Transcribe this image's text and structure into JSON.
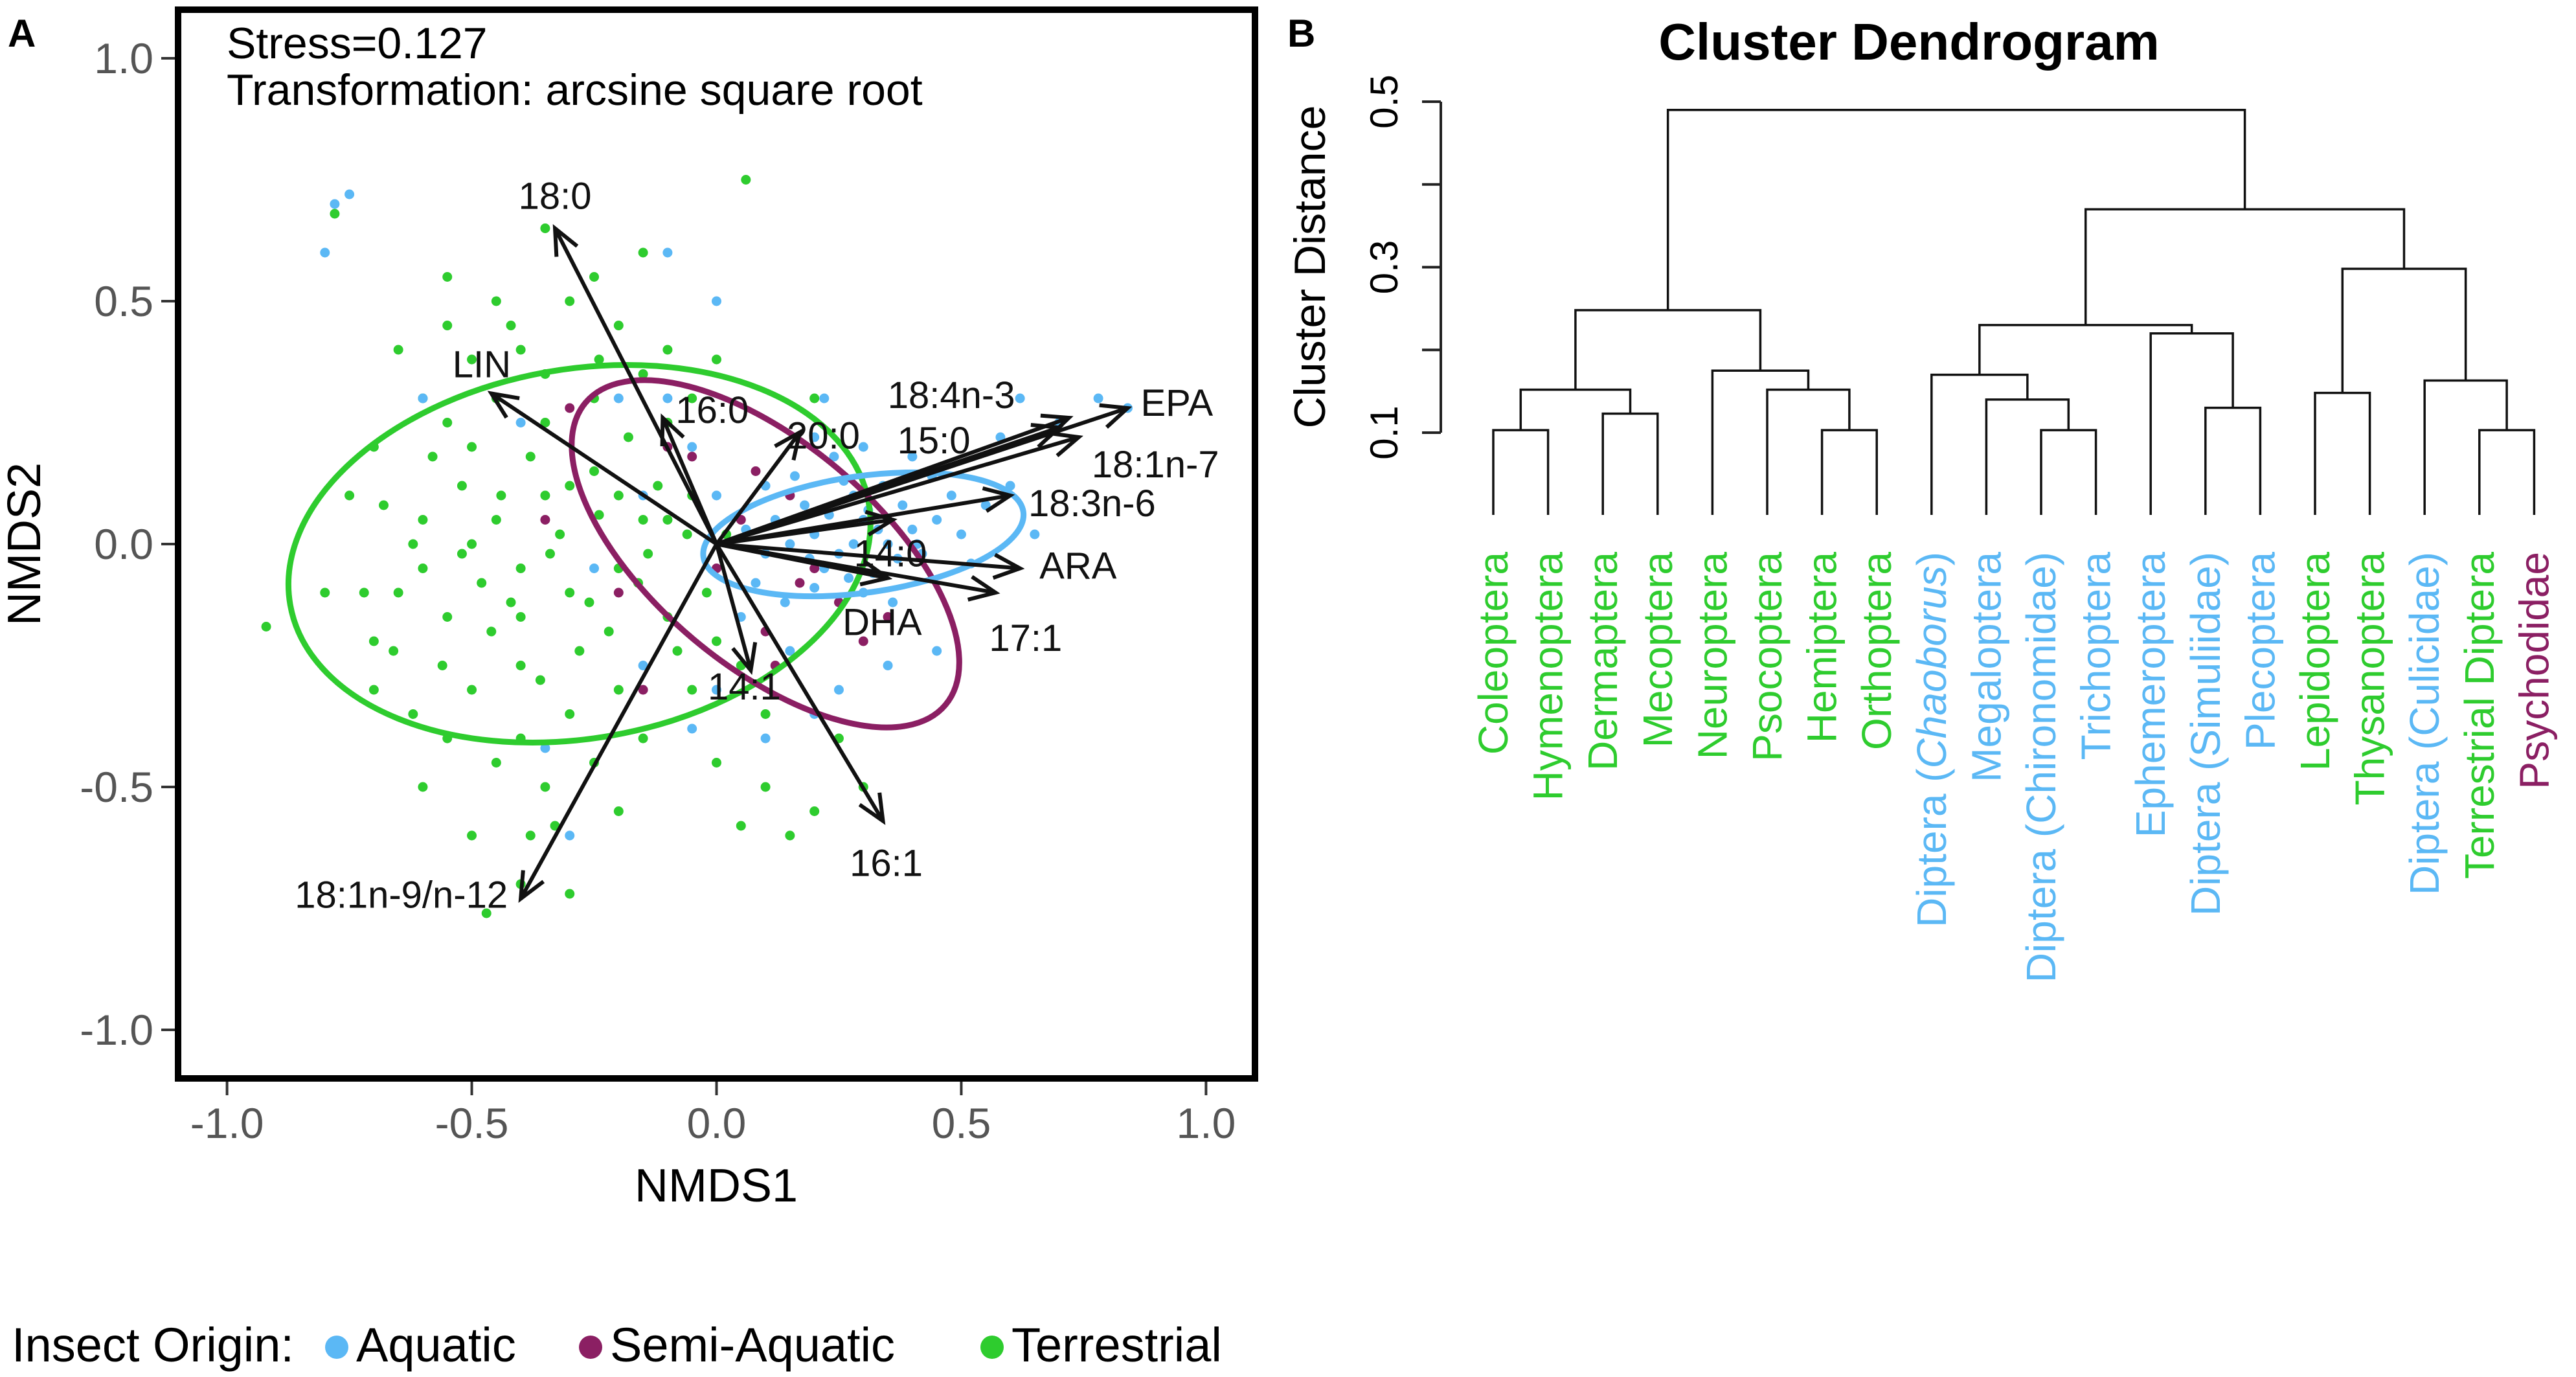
{
  "panel_a_label": "A",
  "panel_b_label": "B",
  "colors": {
    "aquatic": "#5BB8F5",
    "semi_aquatic": "#8B1F63",
    "terrestrial": "#2ECC2E",
    "axis": "#000000",
    "tick_text": "#555555"
  },
  "chart_data": [
    {
      "type": "scatter",
      "panel": "A",
      "annotations": [
        "Stress=0.127",
        "Transformation: arcsine square root"
      ],
      "xlabel": "NMDS1",
      "ylabel": "NMDS2",
      "xlim": [
        -1.1,
        1.1
      ],
      "ylim": [
        -1.1,
        1.1
      ],
      "x_ticks": [
        -1.0,
        -0.5,
        0.0,
        0.5,
        1.0
      ],
      "x_tick_labels": [
        "-1.0",
        "-0.5",
        "0.0",
        "0.5",
        "1.0"
      ],
      "y_ticks": [
        -1.0,
        -0.5,
        0.0,
        0.5,
        1.0
      ],
      "y_tick_labels": [
        "-1.0",
        "-0.5",
        "0.0",
        "0.5",
        "1.0"
      ],
      "legend": {
        "title": "Insect Origin:",
        "position": "bottom",
        "entries": [
          {
            "label": "Aquatic",
            "group": "aquatic"
          },
          {
            "label": "Semi-Aquatic",
            "group": "semi_aquatic"
          },
          {
            "label": "Terrestrial",
            "group": "terrestrial"
          }
        ]
      },
      "points": {
        "aquatic": [
          [
            0.2,
            0.02
          ],
          [
            0.25,
            -0.02
          ],
          [
            0.3,
            0.05
          ],
          [
            0.35,
            0.0
          ],
          [
            0.18,
            0.08
          ],
          [
            0.22,
            -0.05
          ],
          [
            0.28,
            0.1
          ],
          [
            0.4,
            0.03
          ],
          [
            0.15,
            0.0
          ],
          [
            0.32,
            -0.06
          ],
          [
            0.38,
            0.08
          ],
          [
            0.45,
            0.05
          ],
          [
            0.5,
            0.02
          ],
          [
            0.12,
            0.05
          ],
          [
            0.1,
            -0.02
          ],
          [
            0.26,
            0.13
          ],
          [
            0.34,
            0.12
          ],
          [
            0.42,
            -0.02
          ],
          [
            0.2,
            -0.09
          ],
          [
            0.3,
            -0.1
          ],
          [
            0.16,
            0.14
          ],
          [
            0.24,
            0.18
          ],
          [
            0.48,
            0.1
          ],
          [
            0.55,
            0.08
          ],
          [
            0.06,
            0.03
          ],
          [
            0.08,
            -0.08
          ],
          [
            0.36,
            -0.12
          ],
          [
            0.44,
            0.14
          ],
          [
            0.52,
            -0.04
          ],
          [
            0.6,
            0.12
          ],
          [
            0.58,
            0.22
          ],
          [
            0.62,
            0.3
          ],
          [
            0.7,
            0.25
          ],
          [
            0.78,
            0.3
          ],
          [
            0.84,
            0.28
          ],
          [
            0.65,
            0.02
          ],
          [
            0.3,
            0.2
          ],
          [
            0.4,
            0.18
          ],
          [
            0.2,
            0.22
          ],
          [
            0.1,
            0.12
          ],
          [
            0.14,
            -0.12
          ],
          [
            0.05,
            -0.15
          ],
          [
            0.0,
            0.1
          ],
          [
            -0.05,
            0.2
          ],
          [
            -0.1,
            0.3
          ],
          [
            -0.15,
            0.1
          ],
          [
            -0.2,
            0.3
          ],
          [
            0.0,
            -0.3
          ],
          [
            -0.05,
            -0.38
          ],
          [
            0.1,
            -0.4
          ],
          [
            0.2,
            -0.35
          ],
          [
            0.25,
            -0.3
          ],
          [
            -0.3,
            -0.6
          ],
          [
            -0.6,
            0.3
          ],
          [
            -0.75,
            0.72
          ],
          [
            -0.8,
            0.6
          ],
          [
            -0.78,
            0.7
          ],
          [
            -0.1,
            0.6
          ],
          [
            0.0,
            0.5
          ],
          [
            0.35,
            -0.25
          ],
          [
            0.45,
            -0.22
          ],
          [
            -0.35,
            -0.42
          ],
          [
            0.28,
            0.0
          ],
          [
            0.33,
            0.03
          ],
          [
            0.37,
            -0.03
          ],
          [
            0.23,
            0.06
          ],
          [
            0.27,
            -0.07
          ],
          [
            0.19,
            -0.03
          ],
          [
            0.41,
            0.0
          ],
          [
            0.31,
            0.07
          ],
          [
            -0.4,
            0.25
          ],
          [
            -0.25,
            -0.05
          ],
          [
            0.15,
            -0.22
          ],
          [
            0.22,
            0.3
          ],
          [
            -0.15,
            -0.25
          ]
        ],
        "semi_aquatic": [
          [
            -0.1,
            0.2
          ],
          [
            -0.2,
            -0.1
          ],
          [
            0.2,
            -0.05
          ],
          [
            -0.35,
            0.05
          ],
          [
            0.1,
            -0.18
          ],
          [
            -0.15,
            -0.3
          ],
          [
            0.3,
            -0.2
          ],
          [
            0.15,
            0.1
          ],
          [
            0.05,
            0.05
          ],
          [
            -0.05,
            0.18
          ],
          [
            0.0,
            -0.05
          ],
          [
            0.25,
            -0.12
          ],
          [
            0.12,
            -0.25
          ],
          [
            -0.3,
            0.28
          ],
          [
            0.17,
            -0.08
          ],
          [
            0.08,
            0.15
          ],
          [
            0.35,
            -0.15
          ]
        ],
        "terrestrial": [
          [
            -0.5,
            0.2
          ],
          [
            -0.45,
            0.05
          ],
          [
            -0.4,
            -0.05
          ],
          [
            -0.35,
            0.1
          ],
          [
            -0.3,
            -0.1
          ],
          [
            -0.25,
            0.15
          ],
          [
            -0.2,
            -0.05
          ],
          [
            -0.15,
            0.05
          ],
          [
            -0.1,
            -0.15
          ],
          [
            -0.05,
            0.1
          ],
          [
            -0.55,
            -0.15
          ],
          [
            -0.6,
            0.05
          ],
          [
            -0.5,
            -0.3
          ],
          [
            -0.4,
            -0.25
          ],
          [
            -0.3,
            -0.35
          ],
          [
            -0.2,
            -0.3
          ],
          [
            -0.45,
            0.3
          ],
          [
            -0.35,
            0.25
          ],
          [
            -0.25,
            0.3
          ],
          [
            -0.6,
            0.3
          ],
          [
            -0.65,
            -0.1
          ],
          [
            -0.7,
            0.2
          ],
          [
            -0.7,
            -0.3
          ],
          [
            -0.55,
            -0.4
          ],
          [
            -0.45,
            -0.45
          ],
          [
            -0.35,
            -0.5
          ],
          [
            -0.25,
            -0.45
          ],
          [
            -0.15,
            -0.4
          ],
          [
            -0.05,
            -0.3
          ],
          [
            0.05,
            -0.25
          ],
          [
            0.0,
            -0.45
          ],
          [
            0.1,
            -0.5
          ],
          [
            0.2,
            -0.55
          ],
          [
            0.15,
            -0.6
          ],
          [
            -0.4,
            -0.7
          ],
          [
            -0.3,
            -0.72
          ],
          [
            -0.5,
            -0.6
          ],
          [
            -0.6,
            -0.5
          ],
          [
            -0.65,
            0.4
          ],
          [
            -0.55,
            0.45
          ],
          [
            -0.45,
            0.5
          ],
          [
            -0.4,
            0.4
          ],
          [
            -0.3,
            0.5
          ],
          [
            -0.2,
            0.45
          ],
          [
            -0.1,
            0.4
          ],
          [
            0.0,
            0.38
          ],
          [
            -0.15,
            0.6
          ],
          [
            -0.35,
            0.65
          ],
          [
            -0.75,
            0.1
          ],
          [
            -0.8,
            -0.1
          ],
          [
            -0.92,
            -0.17
          ],
          [
            -0.7,
            -0.2
          ],
          [
            -0.62,
            0.0
          ],
          [
            -0.52,
            0.12
          ],
          [
            -0.42,
            -0.12
          ],
          [
            -0.32,
            0.02
          ],
          [
            -0.22,
            -0.18
          ],
          [
            -0.12,
            0.12
          ],
          [
            -0.02,
            -0.1
          ],
          [
            -0.48,
            -0.08
          ],
          [
            -0.38,
            0.18
          ],
          [
            -0.28,
            -0.22
          ],
          [
            -0.18,
            0.22
          ],
          [
            -0.08,
            -0.22
          ],
          [
            -0.58,
            0.18
          ],
          [
            -0.68,
            0.08
          ],
          [
            -0.66,
            -0.22
          ],
          [
            -0.56,
            -0.25
          ],
          [
            -0.46,
            -0.18
          ],
          [
            -0.36,
            -0.28
          ],
          [
            -0.26,
            -0.12
          ],
          [
            -0.16,
            -0.08
          ],
          [
            -0.06,
            0.02
          ],
          [
            -0.5,
            0.38
          ],
          [
            -0.42,
            0.45
          ],
          [
            -0.24,
            0.38
          ],
          [
            -0.1,
            0.25
          ],
          [
            0.06,
            0.75
          ],
          [
            -0.78,
            0.68
          ],
          [
            -0.52,
            -0.02
          ],
          [
            -0.44,
            0.1
          ],
          [
            -0.34,
            -0.02
          ],
          [
            -0.24,
            0.06
          ],
          [
            -0.14,
            -0.02
          ],
          [
            0.02,
            0.02
          ],
          [
            -0.6,
            -0.05
          ],
          [
            -0.4,
            -0.4
          ],
          [
            -0.2,
            -0.55
          ],
          [
            0.05,
            -0.58
          ],
          [
            0.25,
            -0.4
          ],
          [
            0.3,
            -0.5
          ],
          [
            -0.25,
            0.55
          ],
          [
            -0.55,
            0.55
          ],
          [
            -0.38,
            -0.6
          ],
          [
            -0.47,
            -0.76
          ],
          [
            -0.33,
            -0.58
          ],
          [
            -0.62,
            -0.35
          ],
          [
            -0.72,
            -0.1
          ],
          [
            -0.2,
            0.1
          ],
          [
            -0.3,
            0.12
          ],
          [
            -0.4,
            -0.15
          ],
          [
            -0.5,
            0.0
          ],
          [
            -0.1,
            0.05
          ],
          [
            0.0,
            -0.2
          ],
          [
            -0.05,
            0.3
          ],
          [
            0.1,
            -0.35
          ],
          [
            0.2,
            0.3
          ],
          [
            -0.15,
            0.35
          ],
          [
            -0.35,
            0.35
          ],
          [
            -0.55,
            0.25
          ]
        ]
      },
      "ellipses": [
        {
          "group": "terrestrial",
          "cx": -0.28,
          "cy": -0.02,
          "rx": 0.6,
          "ry": 0.38,
          "angle_deg": 10
        },
        {
          "group": "semi_aquatic",
          "cx": 0.1,
          "cy": -0.02,
          "rx": 0.48,
          "ry": 0.23,
          "angle_deg": -40
        },
        {
          "group": "aquatic",
          "cx": 0.3,
          "cy": 0.02,
          "rx": 0.33,
          "ry": 0.12,
          "angle_deg": 8
        }
      ],
      "vectors": [
        {
          "label": "18:0",
          "x": -0.33,
          "y": 0.65
        },
        {
          "label": "LIN",
          "x": -0.46,
          "y": 0.31
        },
        {
          "label": "16:0",
          "x": -0.11,
          "y": 0.26
        },
        {
          "label": "20:0",
          "x": 0.17,
          "y": 0.23
        },
        {
          "label": "18:4n-3",
          "x": 0.72,
          "y": 0.26
        },
        {
          "label": "EPA",
          "x": 0.84,
          "y": 0.28
        },
        {
          "label": "15:0",
          "x": 0.7,
          "y": 0.24
        },
        {
          "label": "18:1n-7",
          "x": 0.74,
          "y": 0.22
        },
        {
          "label": "18:3n-6",
          "x": 0.6,
          "y": 0.1
        },
        {
          "label": "14:0",
          "x": 0.36,
          "y": 0.05
        },
        {
          "label": "ARA",
          "x": 0.62,
          "y": -0.05
        },
        {
          "label": "17:1",
          "x": 0.57,
          "y": -0.1
        },
        {
          "label": "DHA",
          "x": 0.35,
          "y": -0.07
        },
        {
          "label": "14:1",
          "x": 0.07,
          "y": -0.26
        },
        {
          "label": "16:1",
          "x": 0.34,
          "y": -0.57
        },
        {
          "label": "18:1n-9/n-12",
          "x": -0.4,
          "y": -0.73
        }
      ]
    },
    {
      "type": "dendrogram",
      "panel": "B",
      "title": "Cluster Dendrogram",
      "ylabel": "Cluster Distance",
      "ylim": [
        0.1,
        0.5
      ],
      "y_ticks": [
        0.1,
        0.2,
        0.3,
        0.4,
        0.5
      ],
      "y_tick_labels": [
        "0.1",
        "",
        "0.3",
        "",
        "0.5"
      ],
      "leaves": [
        {
          "label": "Coleoptera",
          "group": "terrestrial"
        },
        {
          "label": "Hymenoptera",
          "group": "terrestrial"
        },
        {
          "label": "Dermaptera",
          "group": "terrestrial"
        },
        {
          "label": "Mecoptera",
          "group": "terrestrial"
        },
        {
          "label": "Neuroptera",
          "group": "terrestrial"
        },
        {
          "label": "Psocoptera",
          "group": "terrestrial"
        },
        {
          "label": "Hemiptera",
          "group": "terrestrial"
        },
        {
          "label": "Orthoptera",
          "group": "terrestrial"
        },
        {
          "label": "Diptera (",
          "label_italic": "Chaoborus",
          "label_end": ")",
          "group": "aquatic"
        },
        {
          "label": "Megaloptera",
          "group": "aquatic"
        },
        {
          "label": "Diptera (Chironomidae)",
          "group": "aquatic"
        },
        {
          "label": "Trichoptera",
          "group": "aquatic"
        },
        {
          "label": "Ephemeroptera",
          "group": "aquatic"
        },
        {
          "label": "Diptera (Simuliidae)",
          "group": "aquatic"
        },
        {
          "label": "Plecoptera",
          "group": "aquatic"
        },
        {
          "label": "Lepidoptera",
          "group": "terrestrial"
        },
        {
          "label": "Thysanoptera",
          "group": "terrestrial"
        },
        {
          "label": "Diptera (Culicidae)",
          "group": "aquatic"
        },
        {
          "label": "Terrestrial Diptera",
          "group": "terrestrial"
        },
        {
          "label": "Psychodidae",
          "group": "semi_aquatic"
        }
      ],
      "merges": [
        {
          "left": 0,
          "right": 1,
          "height": 0.103
        },
        {
          "left": 2,
          "right": 3,
          "height": 0.123
        },
        {
          "left": 20,
          "right": 21,
          "height": 0.152
        },
        {
          "left": 6,
          "right": 7,
          "height": 0.103
        },
        {
          "left": 5,
          "right": 23,
          "height": 0.152
        },
        {
          "left": 4,
          "right": 24,
          "height": 0.175
        },
        {
          "left": 22,
          "right": 25,
          "height": 0.248
        },
        {
          "left": 10,
          "right": 11,
          "height": 0.103
        },
        {
          "left": 9,
          "right": 27,
          "height": 0.14
        },
        {
          "left": 8,
          "right": 28,
          "height": 0.17
        },
        {
          "left": 13,
          "right": 14,
          "height": 0.13
        },
        {
          "left": 12,
          "right": 30,
          "height": 0.22
        },
        {
          "left": 29,
          "right": 31,
          "height": 0.23
        },
        {
          "left": 15,
          "right": 16,
          "height": 0.148
        },
        {
          "left": 18,
          "right": 19,
          "height": 0.103
        },
        {
          "left": 17,
          "right": 34,
          "height": 0.163
        },
        {
          "left": 33,
          "right": 35,
          "height": 0.298
        },
        {
          "left": 32,
          "right": 36,
          "height": 0.37
        },
        {
          "left": 26,
          "right": 37,
          "height": 0.49
        }
      ]
    }
  ]
}
